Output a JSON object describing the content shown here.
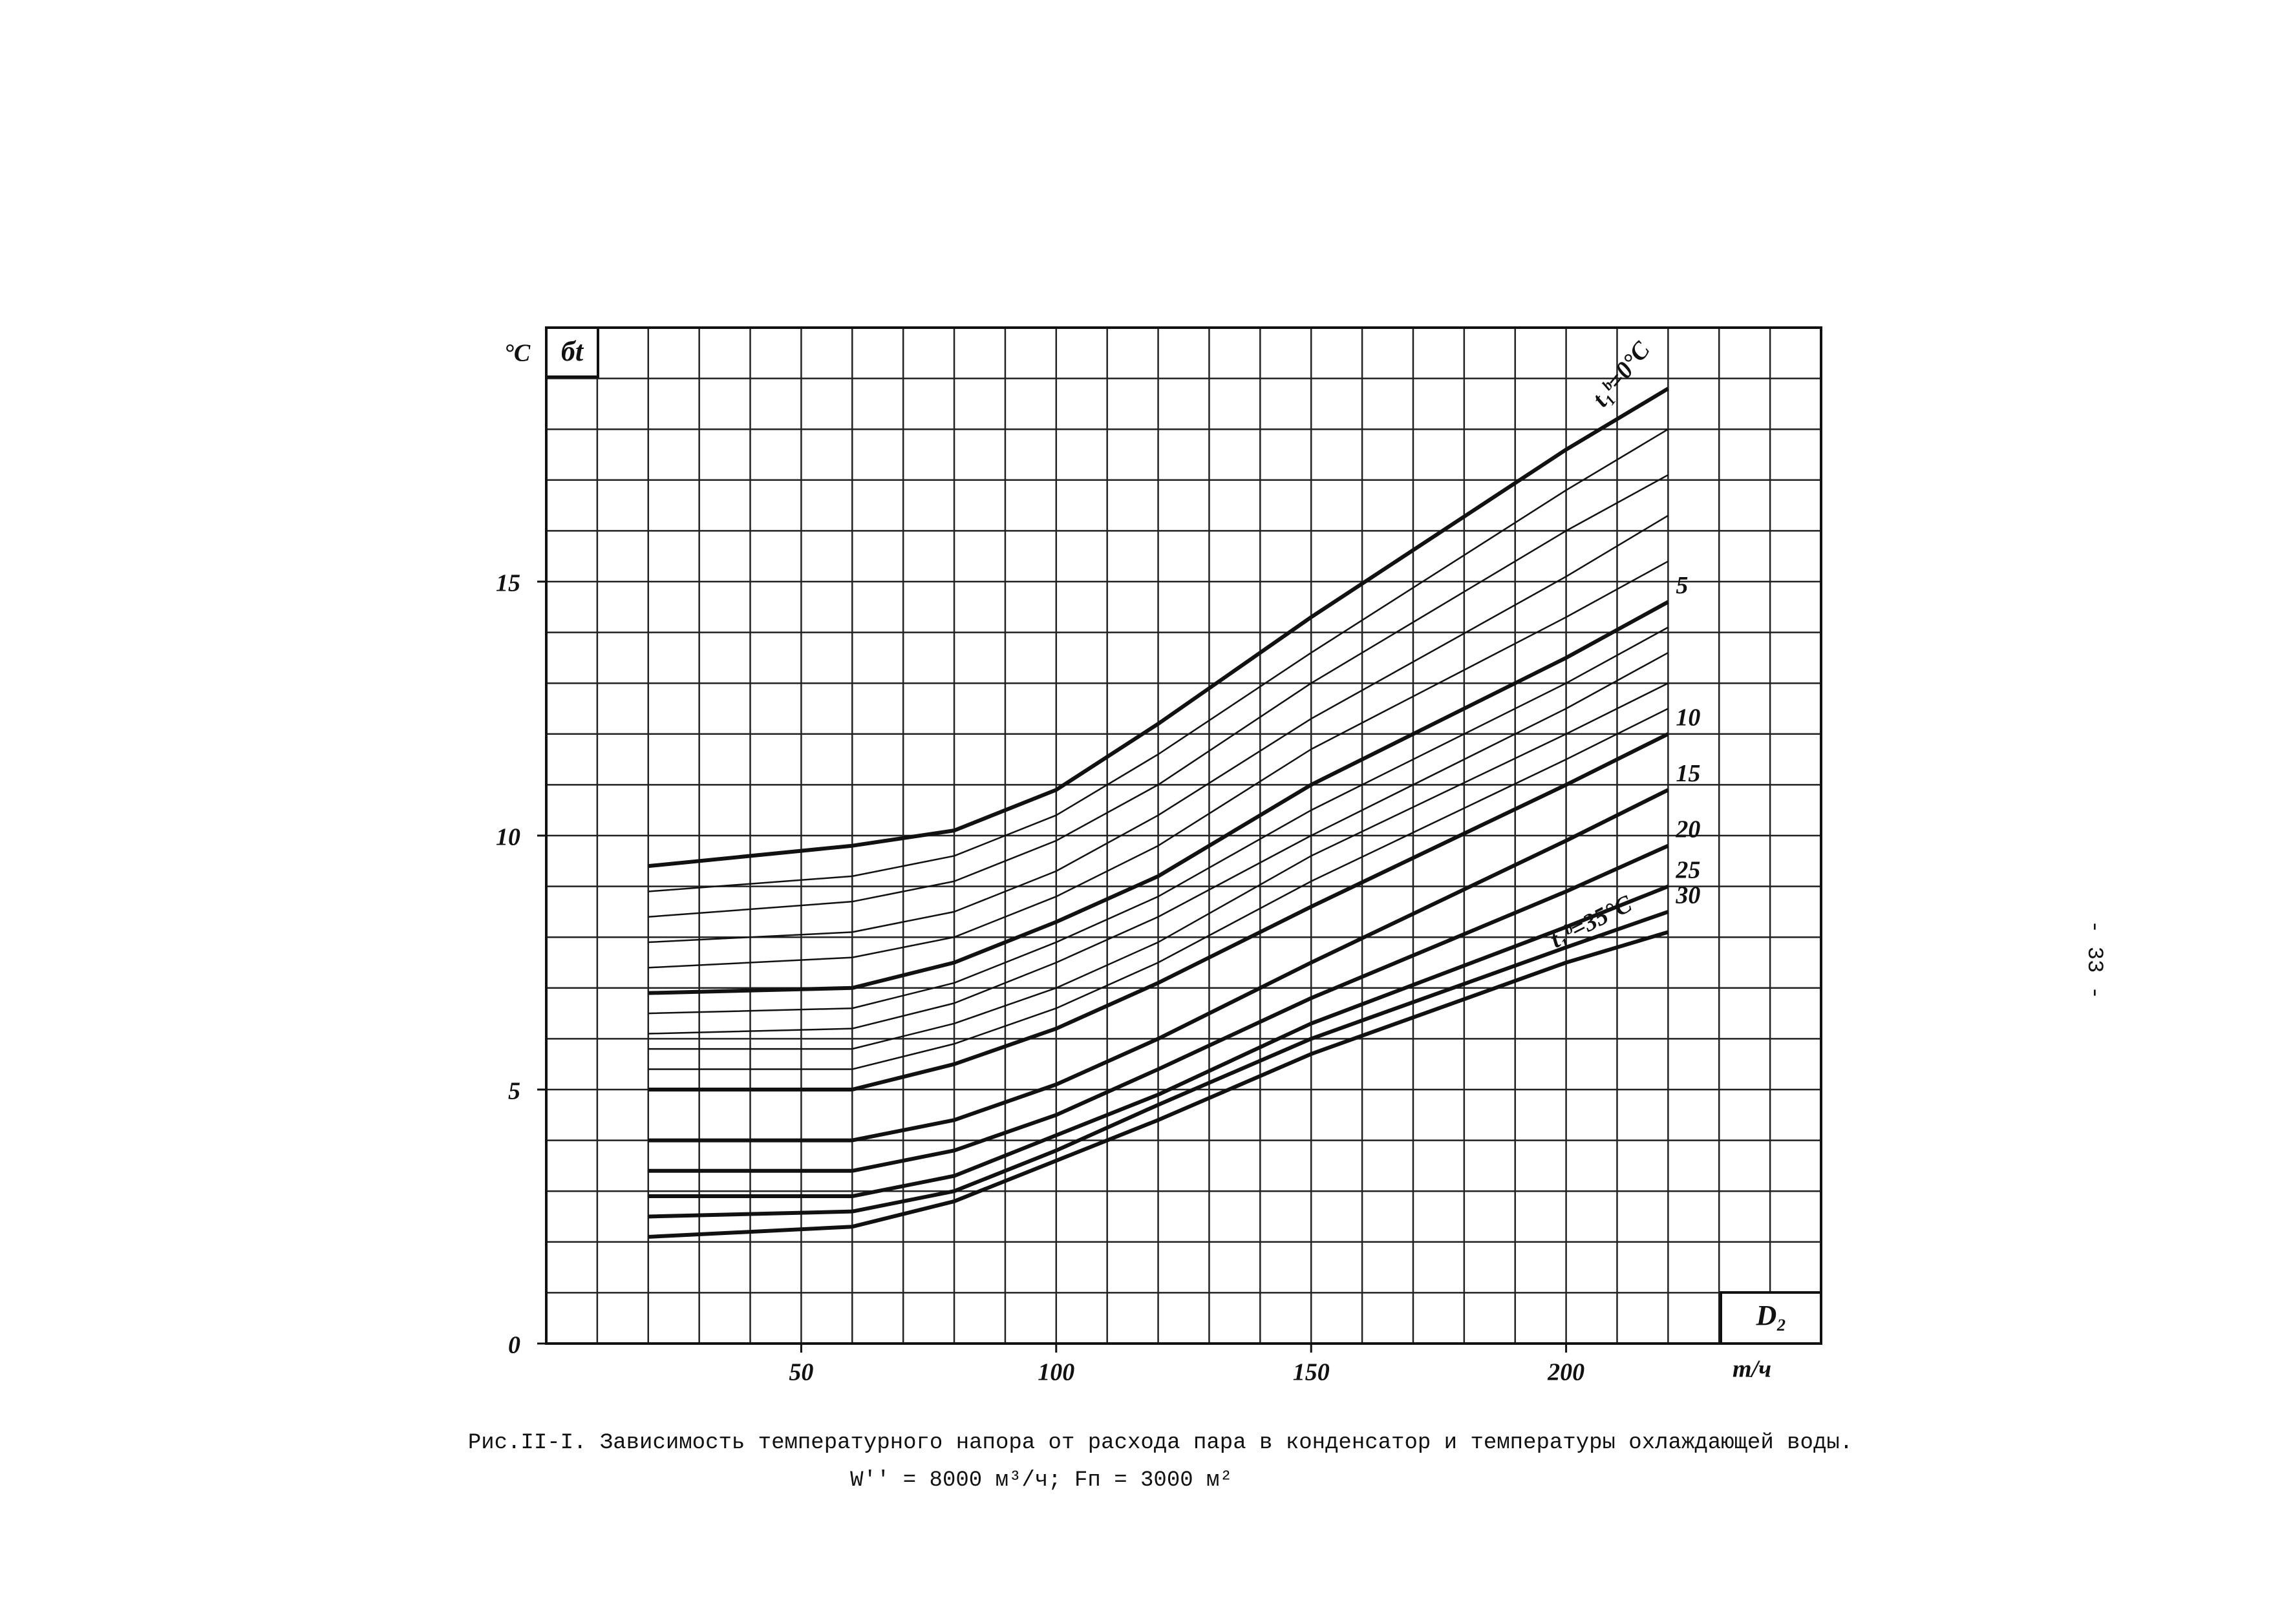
{
  "chart_data": {
    "type": "line",
    "y_label": "бt",
    "y_unit": "°C",
    "x_label": "D₂",
    "x_unit": "т/ч",
    "caption": "Рис.II-I. Зависимость температурного напора от расхода пара в конденсатор и температуры охлаждающей воды.",
    "caption_2": "W'' = 8000 м³/ч;   Fп = 3000 м²",
    "page_number": "- 33 -",
    "xlim": [
      0,
      250
    ],
    "ylim": [
      0,
      20
    ],
    "xticks": [
      50,
      100,
      150,
      200
    ],
    "yticks": [
      0,
      5,
      10,
      15
    ],
    "xgrid": [
      0,
      10,
      20,
      30,
      40,
      50,
      60,
      70,
      80,
      90,
      100,
      110,
      120,
      130,
      140,
      150,
      160,
      170,
      180,
      190,
      200,
      210,
      220,
      230,
      240,
      250
    ],
    "ygrid": [
      0,
      1,
      2,
      3,
      4,
      5,
      6,
      7,
      8,
      9,
      10,
      11,
      12,
      13,
      14,
      15,
      16,
      17,
      18,
      19,
      20
    ],
    "grid": true,
    "color": "#111111",
    "x": [
      20,
      60,
      80,
      100,
      120,
      150,
      200,
      220
    ],
    "series": [
      {
        "name": "t₁ᵇ=0°C",
        "bold": true,
        "values": [
          9.4,
          9.8,
          10.1,
          10.9,
          12.2,
          14.3,
          17.6,
          18.8
        ]
      },
      {
        "bold": false,
        "values": [
          8.9,
          9.2,
          9.6,
          10.4,
          11.6,
          13.6,
          16.8,
          18.0
        ]
      },
      {
        "bold": false,
        "values": [
          8.4,
          8.7,
          9.1,
          9.9,
          11.0,
          13.0,
          16.0,
          17.1
        ]
      },
      {
        "bold": false,
        "values": [
          7.9,
          8.1,
          8.5,
          9.3,
          10.4,
          12.3,
          15.1,
          16.3
        ]
      },
      {
        "bold": false,
        "values": [
          7.4,
          7.6,
          8.0,
          8.8,
          9.8,
          11.7,
          14.3,
          15.4
        ]
      },
      {
        "name": "5",
        "bold": true,
        "values": [
          6.9,
          7.0,
          7.5,
          8.3,
          9.2,
          11.0,
          13.5,
          14.6
        ]
      },
      {
        "bold": false,
        "values": [
          6.5,
          6.6,
          7.1,
          7.9,
          8.8,
          10.5,
          13.0,
          14.1
        ]
      },
      {
        "bold": false,
        "values": [
          6.1,
          6.2,
          6.7,
          7.5,
          8.4,
          10.0,
          12.5,
          13.6
        ]
      },
      {
        "bold": false,
        "values": [
          5.8,
          5.8,
          6.3,
          7.0,
          7.9,
          9.6,
          12.0,
          13.0
        ]
      },
      {
        "bold": false,
        "values": [
          5.4,
          5.4,
          5.9,
          6.6,
          7.5,
          9.1,
          11.5,
          12.5
        ]
      },
      {
        "name": "10",
        "bold": true,
        "values": [
          5.0,
          5.0,
          5.5,
          6.2,
          7.1,
          8.6,
          11.0,
          12.0
        ]
      },
      {
        "name": "15",
        "bold": true,
        "values": [
          4.0,
          4.0,
          4.4,
          5.1,
          6.0,
          7.5,
          9.9,
          10.9
        ]
      },
      {
        "name": "20",
        "bold": true,
        "values": [
          3.4,
          3.4,
          3.8,
          4.5,
          5.4,
          6.8,
          8.9,
          9.8
        ]
      },
      {
        "name": "25",
        "bold": true,
        "values": [
          2.9,
          2.9,
          3.3,
          4.1,
          4.9,
          6.3,
          8.2,
          9.0
        ]
      },
      {
        "name": "30",
        "bold": true,
        "values": [
          2.5,
          2.6,
          3.0,
          3.8,
          4.7,
          6.0,
          7.8,
          8.5
        ]
      },
      {
        "name": "t₁ᵇ=35°C",
        "bold": true,
        "values": [
          2.1,
          2.3,
          2.8,
          3.6,
          4.4,
          5.7,
          7.5,
          8.1
        ]
      }
    ]
  }
}
